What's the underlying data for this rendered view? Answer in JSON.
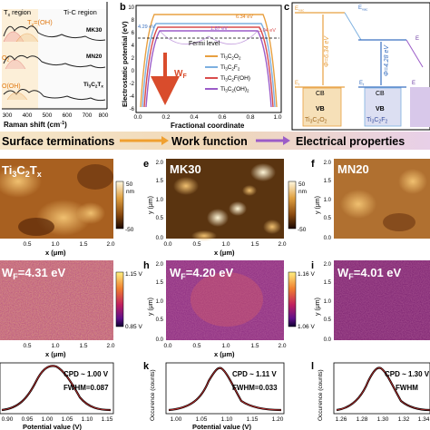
{
  "panel_a": {
    "region_tx": "T",
    "region_tx_sub": "x",
    "region_tx_rest": " region",
    "region_tic": "Ti-C region",
    "tx_oh_label": "T",
    "tx_oh_sub": "x",
    "tx_oh_rest": "=(OH)",
    "sample_mk30": "MK30",
    "sample_mn20": "MN20",
    "sample_ti3c2tx": "Ti",
    "sample_ti3c2tx_full": "Ti3C2Tx",
    "o2_label": "O",
    "o2_sub": "2",
    "oh_label": "O(OH)",
    "xlabel": "Raman shift (cm",
    "xlabel_sup": "-1",
    "xlabel_end": ")",
    "ticks": [
      "300",
      "400",
      "500",
      "600",
      "700",
      "800"
    ]
  },
  "panel_b": {
    "letter": "b",
    "ylabel": "Electrostatic potential (eV)",
    "xlabel": "Fractional coordinate",
    "fermi": "Fermi level",
    "wf_arrow": "W",
    "wf_sub": "F",
    "v1": "4.29 eV",
    "v2": "6.34 eV",
    "v3": "1.87 eV",
    "v4": "3.04 eV",
    "legend": [
      "Ti3C2O2",
      "Ti3C2F2",
      "Ti3C2F(OH)",
      "Ti3C2(OH)2"
    ],
    "legend_colors": [
      "#e8a040",
      "#7db0e0",
      "#d94c4c",
      "#9b5cc8"
    ],
    "yticks": [
      "10",
      "8",
      "6",
      "4",
      "2",
      "0",
      "-2",
      "-4",
      "-6"
    ],
    "xticks": [
      "0.0",
      "0.2",
      "0.4",
      "0.6",
      "0.8",
      "1.0"
    ]
  },
  "panel_c": {
    "letter": "c",
    "evac": "E",
    "evac_sub": "vac",
    "phi1": "Φ=6.34 eV",
    "phi2": "Φ=4.28 eV",
    "ef": "E",
    "ef_sub": "f",
    "cb": "CB",
    "vb": "VB",
    "mat1": "Ti",
    "mat1_full": "Ti3C2O2",
    "mat2_full": "Ti3C2F2"
  },
  "banner": {
    "left": "Surface terminations",
    "middle": "Work function",
    "right": "Electrical properties"
  },
  "afm_row": {
    "d_label": "Ti3C2Tx",
    "e_letter": "e",
    "e_label": "MK30",
    "f_letter": "f",
    "f_label": "MN20",
    "scale_top": "50",
    "scale_unit": "nm",
    "scale_bottom": "-50",
    "xlabel": "x (μm)",
    "ylabel": "y (μm)",
    "xticks": [
      "0.5",
      "1.0",
      "1.5",
      "2.0"
    ],
    "xticks_e": [
      "0.0",
      "0.5",
      "1.0",
      "1.5",
      "2.0"
    ],
    "yticks": [
      "2.0",
      "1.5",
      "1.0",
      "0.5",
      "0.0"
    ]
  },
  "kpfm_row": {
    "g_label": "W",
    "g_value": "=4.31 eV",
    "h_letter": "h",
    "h_value": "=4.20 eV",
    "i_letter": "i",
    "i_value": "=4.01 eV",
    "wf_sub": "F",
    "scale_g_top": "1.15 V",
    "scale_g_bottom": "0.85 V",
    "scale_h_top": "1.16 V",
    "scale_h_bottom": "1.06 V",
    "xlabel": "x (μm)",
    "ylabel": "y (μm)",
    "xticks": [
      "0.5",
      "1.0",
      "1.5",
      "2.0"
    ],
    "xticks_h": [
      "0.0",
      "0.5",
      "1.0",
      "1.5",
      "2.0"
    ],
    "yticks": [
      "2.0",
      "1.5",
      "1.0",
      "0.5",
      "0.0"
    ]
  },
  "hist_row": {
    "j_cpd": "CPD ~ 1.00 V",
    "j_fwhm": "FWHM=0.087",
    "k_letter": "k",
    "k_cpd": "CPD ~ 1.11 V",
    "k_fwhm": "FWHM=0.033",
    "l_letter": "l",
    "l_cpd": "CPD ~ 1.30 V",
    "l_fwhm": "FWHM",
    "xlabel": "Potential value (V)",
    "ylabel": "Occurence (counts)",
    "j_ticks": [
      "0.90",
      "0.95",
      "1.00",
      "1.05",
      "1.10",
      "1.15"
    ],
    "k_ticks": [
      "1.00",
      "1.05",
      "1.10",
      "1.15",
      "1.20"
    ],
    "l_ticks": [
      "1.26",
      "1.28",
      "1.30",
      "1.32",
      "1.34"
    ]
  }
}
